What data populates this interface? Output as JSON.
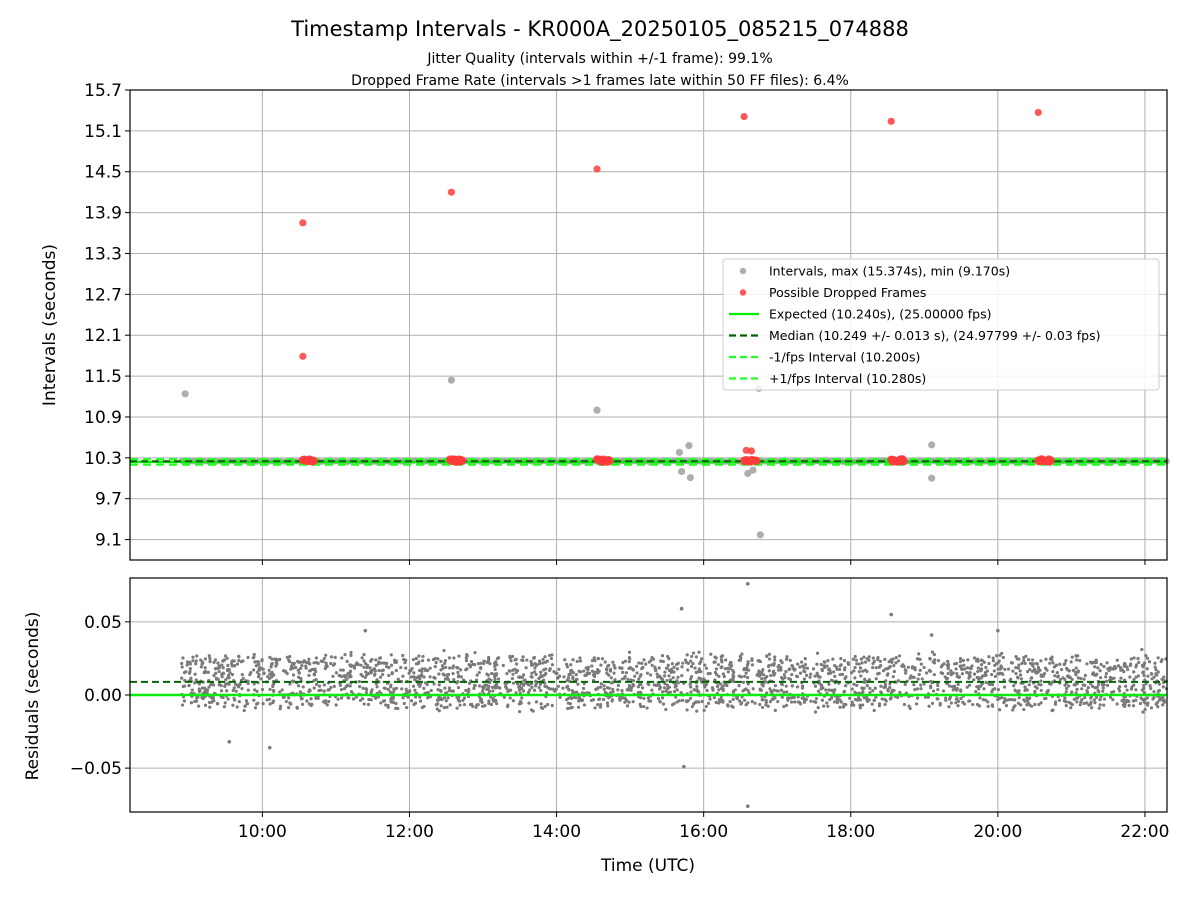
{
  "chart_data": [
    {
      "type": "scatter",
      "title": "Timestamp Intervals - KR000A_20250105_085215_074888",
      "subtitle_lines": [
        "Jitter Quality (intervals within +/-1 frame): 99.1%",
        "Dropped Frame Rate (intervals >1 frames late within 50 FF files): 6.4%"
      ],
      "ylabel": "Intervals (seconds)",
      "ylim": [
        8.8,
        15.7
      ],
      "yticks": [
        "9.1",
        "9.7",
        "10.3",
        "10.9",
        "11.5",
        "12.1",
        "12.7",
        "13.3",
        "13.9",
        "14.5",
        "15.1",
        "15.7"
      ],
      "xlim_hours": [
        8.2,
        22.3
      ],
      "grid": true,
      "legend_position": "center-right",
      "colors": {
        "intervals": "#a0a0a0",
        "dropped": "#ff3b3b",
        "expected": "#00ee00",
        "median": "#006400",
        "fps_bounds": "#22ff22"
      },
      "legend": [
        {
          "label": "Intervals, max (15.374s), min (9.170s)",
          "kind": "marker",
          "color": "#a0a0a0"
        },
        {
          "label": "Possible Dropped Frames",
          "kind": "marker",
          "color": "#ff3b3b"
        },
        {
          "label": "Expected (10.240s), (25.00000 fps)",
          "kind": "solid",
          "color": "#00ee00"
        },
        {
          "label": "Median (10.249 +/- 0.013 s), (24.97799 +/- 0.03 fps)",
          "kind": "dashed",
          "color": "#006400"
        },
        {
          "label": "-1/fps Interval (10.200s)",
          "kind": "dashed",
          "color": "#22ff22"
        },
        {
          "label": "+1/fps Interval (10.280s)",
          "kind": "dashed",
          "color": "#22ff22"
        }
      ],
      "lines": {
        "expected": 10.24,
        "median": 10.249,
        "minus_fps": 10.2,
        "plus_fps": 10.28
      },
      "band_start_hour": 8.9,
      "interval_outliers": [
        {
          "x": 8.95,
          "y": 11.24
        },
        {
          "x": 12.57,
          "y": 11.44
        },
        {
          "x": 14.55,
          "y": 11.0
        },
        {
          "x": 15.67,
          "y": 10.38
        },
        {
          "x": 15.7,
          "y": 10.1
        },
        {
          "x": 15.8,
          "y": 10.48
        },
        {
          "x": 15.82,
          "y": 10.01
        },
        {
          "x": 16.6,
          "y": 10.07
        },
        {
          "x": 16.67,
          "y": 10.12
        },
        {
          "x": 16.75,
          "y": 11.32
        },
        {
          "x": 16.77,
          "y": 9.17
        },
        {
          "x": 19.1,
          "y": 10.49
        },
        {
          "x": 19.1,
          "y": 10.0
        }
      ],
      "dropped_frames": [
        {
          "x": 10.55,
          "y": 13.75
        },
        {
          "x": 10.55,
          "y": 11.79
        },
        {
          "x": 12.57,
          "y": 14.2
        },
        {
          "x": 14.55,
          "y": 14.54
        },
        {
          "x": 16.55,
          "y": 15.31
        },
        {
          "x": 16.58,
          "y": 10.41
        },
        {
          "x": 16.65,
          "y": 10.4
        },
        {
          "x": 18.55,
          "y": 15.24
        },
        {
          "x": 20.55,
          "y": 15.37
        }
      ],
      "dropped_clusters": [
        {
          "start": 10.55,
          "end": 10.7,
          "y": 10.26
        },
        {
          "start": 12.55,
          "end": 12.72,
          "y": 10.26
        },
        {
          "start": 14.55,
          "end": 14.72,
          "y": 10.26
        },
        {
          "start": 16.55,
          "end": 16.72,
          "y": 10.26
        },
        {
          "start": 18.55,
          "end": 18.72,
          "y": 10.26
        },
        {
          "start": 20.55,
          "end": 20.72,
          "y": 10.26
        }
      ]
    },
    {
      "type": "scatter",
      "xlabel": "Time (UTC)",
      "ylabel": "Residuals (seconds)",
      "ylim": [
        -0.08,
        0.08
      ],
      "yticks": [
        "−0.05",
        "0.00",
        "0.05"
      ],
      "xticks": [
        "10:00",
        "12:00",
        "14:00",
        "16:00",
        "18:00",
        "20:00",
        "22:00"
      ],
      "xlim_hours": [
        8.2,
        22.3
      ],
      "grid": true,
      "lines": {
        "zero": 0.0,
        "median_offset": 0.009
      },
      "band_center": 0.009,
      "band_spread": 0.017,
      "residual_outliers": [
        {
          "x": 9.55,
          "y": -0.032
        },
        {
          "x": 10.1,
          "y": -0.036
        },
        {
          "x": 11.4,
          "y": 0.044
        },
        {
          "x": 15.7,
          "y": 0.059
        },
        {
          "x": 15.73,
          "y": -0.049
        },
        {
          "x": 16.6,
          "y": 0.076
        },
        {
          "x": 16.6,
          "y": -0.076
        },
        {
          "x": 18.55,
          "y": 0.055
        },
        {
          "x": 19.1,
          "y": 0.041
        },
        {
          "x": 20.0,
          "y": 0.044
        }
      ]
    }
  ]
}
